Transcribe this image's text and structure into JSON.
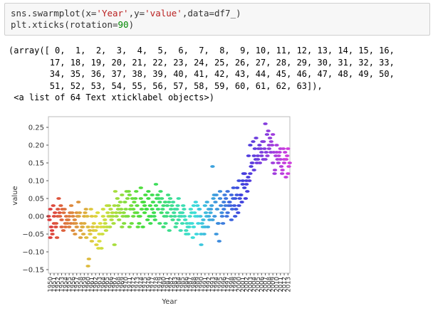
{
  "cell": {
    "code": {
      "line1": {
        "fn": "sns.swarmplot(x=",
        "s1": "'Year'",
        "m1": ",y=",
        "s2": "'value'",
        "m2": ",data=df7_)"
      },
      "line2": {
        "a": "plt.xticks(rotation=",
        "num": "90",
        "b": ")"
      }
    },
    "output": [
      "(array([ 0,  1,  2,  3,  4,  5,  6,  7,  8,  9, 10, 11, 12, 13, 14, 15, 16,",
      "        17, 18, 19, 20, 21, 22, 23, 24, 25, 26, 27, 28, 29, 30, 31, 32, 33,",
      "        34, 35, 36, 37, 38, 39, 40, 41, 42, 43, 44, 45, 46, 47, 48, 49, 50,",
      "        51, 52, 53, 54, 55, 56, 57, 58, 59, 60, 61, 62, 63]),",
      " <a list of 64 Text xticklabel objects>)"
    ]
  },
  "chart_data": {
    "type": "scatter",
    "subtype": "swarm",
    "xlabel": "Year",
    "ylabel": "value",
    "ylim": [
      -0.16,
      0.28
    ],
    "yticks": [
      -0.15,
      -0.1,
      -0.05,
      0.0,
      0.05,
      0.1,
      0.15,
      0.2,
      0.25
    ],
    "ytick_labels": [
      "−0.15",
      "−0.10",
      "−0.05",
      "0.00",
      "0.05",
      "0.10",
      "0.15",
      "0.20",
      "0.25"
    ],
    "categories": [
      "1950",
      "1951",
      "1952",
      "1953",
      "1954",
      "1955",
      "1956",
      "1957",
      "1958",
      "1959",
      "1960",
      "1961",
      "1962",
      "1963",
      "1964",
      "1965",
      "1966",
      "1967",
      "1968",
      "1969",
      "1970",
      "1971",
      "1972",
      "1973",
      "1974",
      "1975",
      "1976",
      "1977",
      "1978",
      "1979",
      "1980",
      "1981",
      "1982",
      "1983",
      "1984",
      "1985",
      "1986",
      "1987",
      "1988",
      "1989",
      "1990",
      "1991",
      "1992",
      "1993",
      "1994",
      "1995",
      "1996",
      "1997",
      "1998",
      "1999",
      "2000",
      "2001",
      "2002",
      "2003",
      "2004",
      "2005",
      "2006",
      "2007",
      "2008",
      "2009",
      "2010",
      "2011",
      "2012",
      "2013"
    ],
    "palette": "husl",
    "grid": false,
    "per_year_values": [
      [
        -0.06,
        -0.03,
        0.0,
        0.02,
        -0.01,
        -0.04
      ],
      [
        -0.02,
        0.01,
        -0.05,
        0.0,
        0.03,
        -0.03
      ],
      [
        0.0,
        0.05,
        -0.02,
        0.02,
        -0.06,
        0.01
      ],
      [
        -0.03,
        0.02,
        0.0,
        -0.01,
        0.03,
        -0.04
      ],
      [
        -0.02,
        0.0,
        0.01,
        -0.03,
        0.02,
        -0.01
      ],
      [
        -0.03,
        0.01,
        -0.02,
        0.0,
        -0.01,
        -0.02
      ],
      [
        0.0,
        -0.02,
        0.03,
        -0.04,
        0.01,
        -0.01
      ],
      [
        -0.03,
        0.0,
        -0.05,
        0.01,
        -0.02,
        0.04
      ],
      [
        -0.06,
        -0.02,
        0.0,
        -0.04,
        0.01,
        -0.03
      ],
      [
        -0.02,
        0.01,
        -0.03,
        0.0,
        -0.05,
        0.02
      ],
      [
        -0.14,
        -0.12,
        -0.06,
        -0.03,
        0.0,
        -0.04
      ],
      [
        -0.07,
        -0.03,
        -0.05,
        0.0,
        0.02,
        -0.04
      ],
      [
        -0.04,
        -0.08,
        -0.02,
        0.0,
        -0.06,
        -0.03
      ],
      [
        -0.05,
        -0.02,
        0.01,
        -0.07,
        -0.09,
        -0.03
      ],
      [
        0.0,
        -0.03,
        -0.09,
        0.02,
        -0.05,
        -0.01
      ],
      [
        -0.03,
        0.01,
        -0.02,
        0.03,
        -0.04,
        0.0
      ],
      [
        0.02,
        -0.01,
        0.03,
        0.0,
        -0.03,
        0.01
      ],
      [
        -0.08,
        0.07,
        0.0,
        0.03,
        -0.02,
        0.01
      ],
      [
        0.03,
        -0.01,
        0.0,
        0.02,
        0.05,
        0.01
      ],
      [
        0.06,
        0.0,
        0.04,
        -0.03,
        0.02,
        0.01
      ],
      [
        0.02,
        0.07,
        -0.02,
        0.0,
        0.04,
        0.05
      ],
      [
        0.06,
        0.02,
        0.0,
        -0.03,
        0.07,
        0.03
      ],
      [
        0.0,
        0.04,
        -0.02,
        0.02,
        0.05,
        0.01
      ],
      [
        0.03,
        -0.03,
        0.05,
        0.01,
        0.07,
        0.0
      ],
      [
        0.08,
        0.02,
        -0.02,
        0.05,
        0.0,
        0.04
      ],
      [
        0.03,
        0.06,
        -0.03,
        0.01,
        0.04,
        0.02
      ],
      [
        0.05,
        0.0,
        0.02,
        0.07,
        -0.01,
        0.03
      ],
      [
        0.02,
        0.04,
        -0.02,
        0.06,
        0.0,
        0.01
      ],
      [
        0.09,
        0.05,
        0.0,
        0.03,
        -0.01,
        0.06
      ],
      [
        0.04,
        0.07,
        0.02,
        -0.02,
        0.05,
        0.01
      ],
      [
        0.03,
        0.0,
        0.05,
        -0.03,
        0.02,
        0.04
      ],
      [
        0.01,
        0.06,
        -0.02,
        0.03,
        0.0,
        0.04
      ],
      [
        0.0,
        0.03,
        -0.04,
        0.02,
        0.05,
        -0.01
      ],
      [
        0.02,
        -0.03,
        0.04,
        0.0,
        0.01,
        -0.02
      ],
      [
        0.05,
        0.0,
        0.02,
        -0.01,
        0.03,
        0.01
      ],
      [
        -0.02,
        0.03,
        -0.04,
        0.01,
        0.0,
        0.02
      ],
      [
        -0.05,
        -0.02,
        0.0,
        -0.04,
        -0.01,
        -0.03
      ],
      [
        -0.02,
        0.02,
        -0.05,
        0.0,
        -0.03,
        0.01
      ],
      [
        -0.03,
        0.01,
        -0.02,
        0.03,
        -0.06,
        0.0
      ],
      [
        0.03,
        -0.02,
        0.04,
        0.0,
        -0.05,
        0.02
      ],
      [
        -0.05,
        -0.02,
        0.02,
        -0.08,
        0.0,
        -0.03
      ],
      [
        -0.03,
        0.01,
        -0.01,
        0.03,
        -0.05,
        0.0
      ],
      [
        0.02,
        -0.01,
        0.04,
        0.0,
        -0.03,
        0.01
      ],
      [
        0.14,
        0.05,
        0.02,
        -0.01,
        0.03,
        0.06
      ],
      [
        0.06,
        0.02,
        0.0,
        -0.05,
        0.04,
        -0.02
      ],
      [
        0.07,
        0.03,
        -0.02,
        0.05,
        -0.07,
        0.01
      ],
      [
        0.02,
        0.06,
        0.0,
        0.04,
        -0.02,
        0.03
      ],
      [
        0.07,
        0.03,
        0.05,
        0.01,
        0.0,
        0.04
      ],
      [
        0.06,
        0.02,
        0.04,
        -0.01,
        0.03,
        0.05
      ],
      [
        0.05,
        0.02,
        0.08,
        0.0,
        0.03,
        0.06
      ],
      [
        0.1,
        0.05,
        0.08,
        0.03,
        0.01,
        0.06
      ],
      [
        0.09,
        0.12,
        0.06,
        0.1,
        0.04,
        0.08
      ],
      [
        0.1,
        0.07,
        0.12,
        0.09,
        0.05,
        0.11
      ],
      [
        0.2,
        0.14,
        0.17,
        0.12,
        0.1,
        0.15
      ],
      [
        0.17,
        0.19,
        0.15,
        0.13,
        0.21,
        0.16
      ],
      [
        0.16,
        0.19,
        0.22,
        0.17,
        0.15,
        0.2
      ],
      [
        0.17,
        0.21,
        0.15,
        0.18,
        0.19,
        0.16
      ],
      [
        0.26,
        0.18,
        0.21,
        0.16,
        0.19,
        0.23
      ],
      [
        0.19,
        0.22,
        0.17,
        0.2,
        0.24,
        0.18
      ],
      [
        0.23,
        0.18,
        0.21,
        0.15,
        0.2,
        0.12
      ],
      [
        0.2,
        0.16,
        0.13,
        0.18,
        0.17,
        0.15
      ],
      [
        0.19,
        0.14,
        0.17,
        0.16,
        0.18,
        0.12
      ],
      [
        0.15,
        0.18,
        0.13,
        0.16,
        0.19,
        0.11
      ],
      [
        0.19,
        0.14,
        0.16,
        0.12,
        0.17,
        0.15
      ]
    ]
  }
}
